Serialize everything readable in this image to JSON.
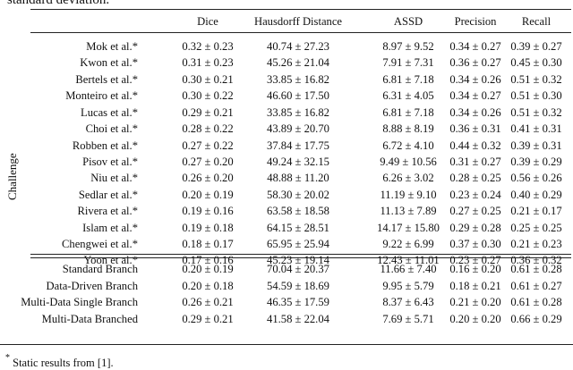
{
  "caption_tail": "standard deviation.",
  "table": {
    "columns": [
      "",
      "Dice",
      "Hausdorff Distance",
      "ASSD",
      "Precision",
      "Recall"
    ],
    "group_label": "Challenge",
    "challenge_rows": [
      {
        "method": "Mok et al.*",
        "dice": "0.32 ± 0.23",
        "hausdorff": "40.74 ± 27.23",
        "assd": "8.97 ± 9.52",
        "precision": "0.34 ± 0.27",
        "recall": "0.39 ± 0.27"
      },
      {
        "method": "Kwon et al.*",
        "dice": "0.31 ± 0.23",
        "hausdorff": "45.26 ± 21.04",
        "assd": "7.91 ± 7.31",
        "precision": "0.36 ± 0.27",
        "recall": "0.45 ± 0.30"
      },
      {
        "method": "Bertels et al.*",
        "dice": "0.30 ± 0.21",
        "hausdorff": "33.85 ± 16.82",
        "assd": "6.81 ± 7.18",
        "precision": "0.34 ± 0.26",
        "recall": "0.51 ± 0.32"
      },
      {
        "method": "Monteiro et al.*",
        "dice": "0.30 ± 0.22",
        "hausdorff": "46.60 ± 17.50",
        "assd": "6.31 ± 4.05",
        "precision": "0.34 ± 0.27",
        "recall": "0.51 ± 0.30"
      },
      {
        "method": "Lucas et al.*",
        "dice": "0.29 ± 0.21",
        "hausdorff": "33.85 ± 16.82",
        "assd": "6.81 ± 7.18",
        "precision": "0.34 ± 0.26",
        "recall": "0.51 ± 0.32"
      },
      {
        "method": "Choi et al.*",
        "dice": "0.28 ± 0.22",
        "hausdorff": "43.89 ± 20.70",
        "assd": "8.88 ± 8.19",
        "precision": "0.36 ± 0.31",
        "recall": "0.41 ± 0.31"
      },
      {
        "method": "Robben et al.*",
        "dice": "0.27 ± 0.22",
        "hausdorff": "37.84 ± 17.75",
        "assd": "6.72 ± 4.10",
        "precision": "0.44 ± 0.32",
        "recall": "0.39 ± 0.31"
      },
      {
        "method": "Pisov et al.*",
        "dice": "0.27 ± 0.20",
        "hausdorff": "49.24 ± 32.15",
        "assd": "9.49 ± 10.56",
        "precision": "0.31 ± 0.27",
        "recall": "0.39 ± 0.29"
      },
      {
        "method": "Niu et al.*",
        "dice": "0.26 ± 0.20",
        "hausdorff": "48.88 ± 11.20",
        "assd": "6.26 ± 3.02",
        "precision": "0.28 ± 0.25",
        "recall": "0.56 ± 0.26"
      },
      {
        "method": "Sedlar et al.*",
        "dice": "0.20 ± 0.19",
        "hausdorff": "58.30 ± 20.02",
        "assd": "11.19 ± 9.10",
        "precision": "0.23 ± 0.24",
        "recall": "0.40 ± 0.29"
      },
      {
        "method": "Rivera et al.*",
        "dice": "0.19 ± 0.16",
        "hausdorff": "63.58 ± 18.58",
        "assd": "11.13 ± 7.89",
        "precision": "0.27 ± 0.25",
        "recall": "0.21 ± 0.17"
      },
      {
        "method": "Islam et al.*",
        "dice": "0.19 ± 0.18",
        "hausdorff": "64.15 ± 28.51",
        "assd": "14.17 ± 15.80",
        "precision": "0.29 ± 0.28",
        "recall": "0.25 ± 0.25"
      },
      {
        "method": "Chengwei et al.*",
        "dice": "0.18 ± 0.17",
        "hausdorff": "65.95 ± 25.94",
        "assd": "9.22 ± 6.99",
        "precision": "0.37 ± 0.30",
        "recall": "0.21 ± 0.23"
      },
      {
        "method": "Yoon et al.*",
        "dice": "0.17 ± 0.16",
        "hausdorff": "45.23 ± 19.14",
        "assd": "12.43 ± 11.01",
        "precision": "0.23 ± 0.27",
        "recall": "0.36 ± 0.32"
      }
    ],
    "branch_rows": [
      {
        "method": "Standard Branch",
        "dice": "0.20 ± 0.19",
        "hausdorff": "70.04 ± 20.37",
        "assd": "11.66 ± 7.40",
        "precision": "0.16 ± 0.20",
        "recall": "0.61 ± 0.28"
      },
      {
        "method": "Data-Driven Branch",
        "dice": "0.20 ± 0.18",
        "hausdorff": "54.59 ± 18.69",
        "assd": "9.95 ± 5.79",
        "precision": "0.18 ± 0.21",
        "recall": "0.61 ± 0.27"
      },
      {
        "method": "Multi-Data Single Branch",
        "dice": "0.26 ± 0.21",
        "hausdorff": "46.35 ± 17.59",
        "assd": "8.37 ± 6.43",
        "precision": "0.21 ± 0.20",
        "recall": "0.61 ± 0.28"
      },
      {
        "method": "Multi-Data Branched",
        "dice": "0.29 ± 0.21",
        "hausdorff": "41.58 ± 22.04",
        "assd": "7.69 ± 5.71",
        "precision": "0.20 ± 0.20",
        "recall": "0.66 ± 0.29"
      }
    ]
  },
  "footnote": {
    "marker": "*",
    "text": "Static results from [1]."
  }
}
